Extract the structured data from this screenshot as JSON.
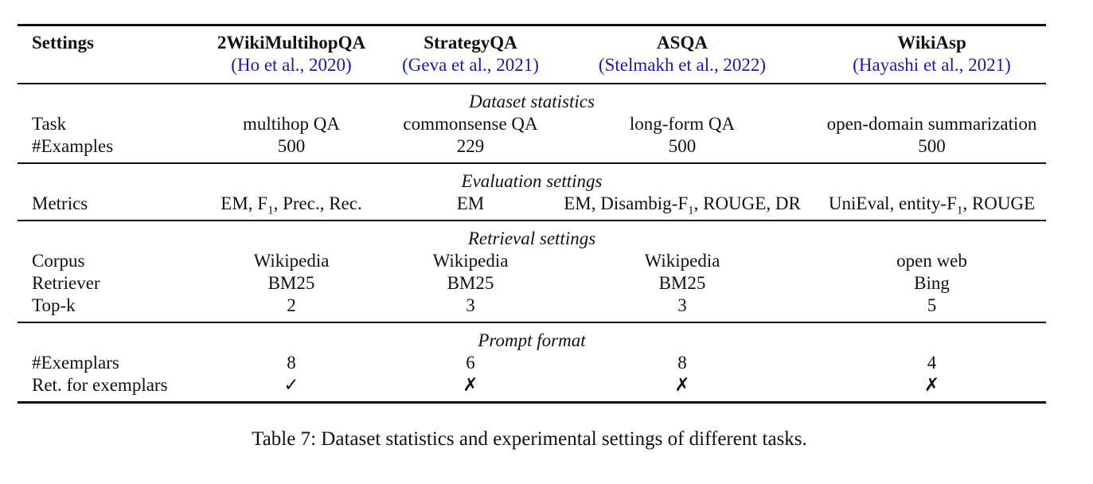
{
  "header": {
    "settings": "Settings",
    "datasets": [
      {
        "name": "2WikiMultihopQA",
        "citation": "(Ho et al., 2020)"
      },
      {
        "name": "StrategyQA",
        "citation": "(Geva et al., 2021)"
      },
      {
        "name": "ASQA",
        "citation": "(Stelmakh et al., 2022)"
      },
      {
        "name": "WikiAsp",
        "citation": "(Hayashi et al., 2021)"
      }
    ]
  },
  "sections": {
    "dataset_statistics": "Dataset statistics",
    "evaluation_settings": "Evaluation settings",
    "retrieval_settings": "Retrieval settings",
    "prompt_format": "Prompt format"
  },
  "rows": {
    "task": {
      "label": "Task",
      "values": [
        "multihop QA",
        "commonsense QA",
        "long-form QA",
        "open-domain summarization"
      ]
    },
    "examples": {
      "label": "#Examples",
      "values": [
        "500",
        "229",
        "500",
        "500"
      ]
    },
    "metrics": {
      "label": "Metrics",
      "values": [
        "EM, F",
        "EM",
        "EM, Disambig-F",
        "UniEval, entity-F"
      ],
      "tails": [
        ", Prec., Rec.",
        "",
        ", ROUGE, DR",
        ", ROUGE"
      ],
      "subscript": "1"
    },
    "corpus": {
      "label": "Corpus",
      "values": [
        "Wikipedia",
        "Wikipedia",
        "Wikipedia",
        "open web"
      ]
    },
    "retriever": {
      "label": "Retriever",
      "values": [
        "BM25",
        "BM25",
        "BM25",
        "Bing"
      ]
    },
    "topk": {
      "label": "Top-k",
      "values": [
        "2",
        "3",
        "3",
        "5"
      ]
    },
    "exemplars": {
      "label": "#Exemplars",
      "values": [
        "8",
        "6",
        "8",
        "4"
      ]
    },
    "ret_exemplars": {
      "label": "Ret. for exemplars",
      "values": [
        "✓",
        "✗",
        "✗",
        "✗"
      ]
    }
  },
  "caption": "Table 7: Dataset statistics and experimental settings of different tasks."
}
